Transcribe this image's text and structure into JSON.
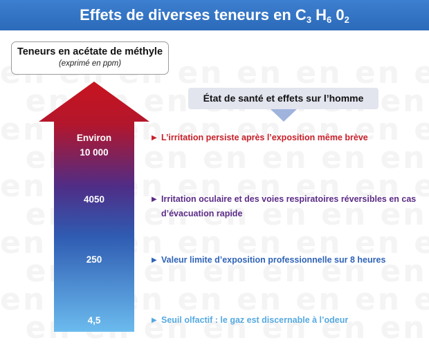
{
  "header": {
    "title_prefix": "Effets de diverses teneurs en C",
    "sub_c": "3",
    "element_h": " H",
    "sub_h": "6",
    "element_o": " 0",
    "sub_o": "2"
  },
  "units": {
    "title": "Teneurs en acétate de méthyle",
    "subtitle": "(exprimé en ppm)"
  },
  "health_label": "État de santé et effets sur l’homme",
  "levels": [
    {
      "label": "Environ",
      "value": "10 000"
    },
    {
      "value": "4050"
    },
    {
      "value": "250"
    },
    {
      "value": "4,5"
    }
  ],
  "effects": [
    {
      "marker": "▶",
      "text": "L’irritation persiste après l’exposition même brève",
      "color": "#c8202a"
    },
    {
      "marker": "▶",
      "text": "Irritation oculaire et des voies respiratoires réversibles en cas d’évacuation rapide",
      "color": "#5b2b86"
    },
    {
      "marker": "▶",
      "text": "Valeur limite d’exposition professionnelle sur 8 heures",
      "color": "#2f63b6"
    },
    {
      "marker": "▶",
      "text": "Seuil olfactif : le gaz est discernable à l’odeur",
      "color": "#56a9e0"
    }
  ],
  "colors": {
    "header": "#2f70c0",
    "arrow_top": "#c8141f",
    "arrow_mid": "#4f2d86",
    "arrow_bottom": "#6bbbee",
    "watermark": "#f4f4f4"
  }
}
